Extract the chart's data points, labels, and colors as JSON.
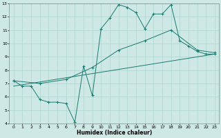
{
  "xlabel": "Humidex (Indice chaleur)",
  "background_color": "#cde8e5",
  "line_color": "#1a7a6e",
  "grid_color": "#afd4cf",
  "xlim": [
    -0.5,
    23.5
  ],
  "ylim": [
    4,
    13
  ],
  "xticks": [
    0,
    1,
    2,
    3,
    4,
    5,
    6,
    7,
    8,
    9,
    10,
    11,
    12,
    13,
    14,
    15,
    16,
    17,
    18,
    19,
    20,
    21,
    22,
    23
  ],
  "yticks": [
    4,
    5,
    6,
    7,
    8,
    9,
    10,
    11,
    12,
    13
  ],
  "line1_x": [
    0,
    1,
    2,
    3,
    4,
    5,
    6,
    7,
    8,
    9,
    10,
    11,
    12,
    13,
    14,
    15,
    16,
    17,
    18,
    19,
    20,
    21,
    22,
    23
  ],
  "line1_y": [
    7.2,
    6.8,
    6.8,
    5.8,
    5.6,
    5.6,
    5.5,
    4.1,
    8.3,
    6.1,
    11.1,
    11.9,
    12.9,
    12.7,
    12.3,
    11.1,
    12.2,
    12.2,
    12.9,
    10.2,
    9.8,
    9.4,
    9.2,
    9.2
  ],
  "line2_x": [
    0,
    3,
    6,
    9,
    12,
    15,
    18,
    21,
    23
  ],
  "line2_y": [
    7.2,
    7.0,
    7.3,
    8.2,
    9.5,
    10.2,
    11.0,
    9.5,
    9.3
  ],
  "line3_x": [
    0,
    23
  ],
  "line3_y": [
    6.8,
    9.2
  ]
}
